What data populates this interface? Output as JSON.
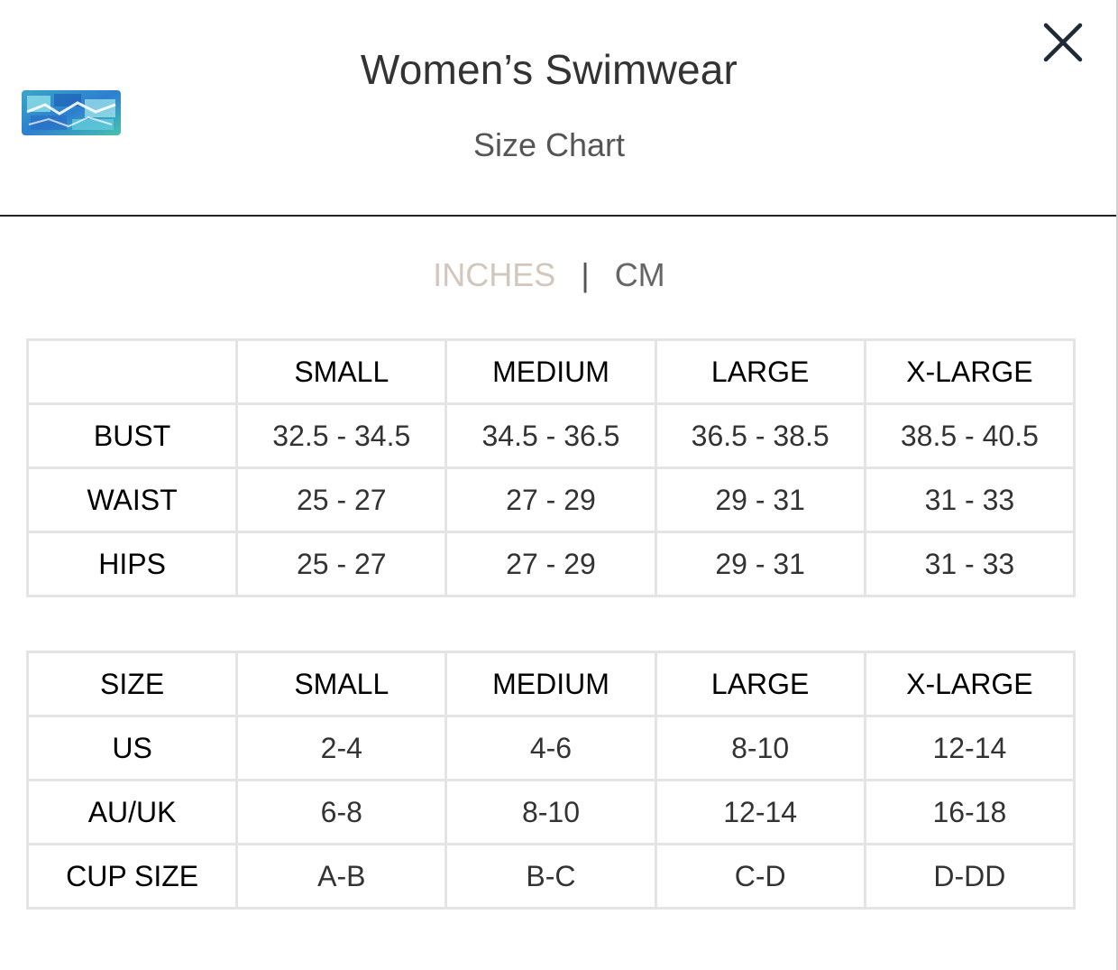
{
  "header": {
    "title": "Women’s Swimwear",
    "subtitle": "Size Chart",
    "close_icon": "close-icon",
    "logo_icon": "brand-logo-icon"
  },
  "units": {
    "inches": "INCHES",
    "separator": "|",
    "cm": "CM",
    "active": "INCHES",
    "active_color": "#d2c7bc"
  },
  "measurements_table": {
    "header": [
      "",
      "SMALL",
      "MEDIUM",
      "LARGE",
      "X-LARGE"
    ],
    "rows": [
      [
        "BUST",
        "32.5 - 34.5",
        "34.5 - 36.5",
        "36.5 - 38.5",
        "38.5 - 40.5"
      ],
      [
        "WAIST",
        "25 - 27",
        "27 - 29",
        "29 - 31",
        "31 - 33"
      ],
      [
        "HIPS",
        "25 - 27",
        "27 - 29",
        "29 - 31",
        "31 - 33"
      ]
    ]
  },
  "conversion_table": {
    "header": [
      "SIZE",
      "SMALL",
      "MEDIUM",
      "LARGE",
      "X-LARGE"
    ],
    "rows": [
      [
        "US",
        "2-4",
        "4-6",
        "8-10",
        "12-14"
      ],
      [
        "AU/UK",
        "6-8",
        "8-10",
        "12-14",
        "16-18"
      ],
      [
        "CUP SIZE",
        "A-B",
        "B-C",
        "C-D",
        "D-DD"
      ]
    ]
  }
}
